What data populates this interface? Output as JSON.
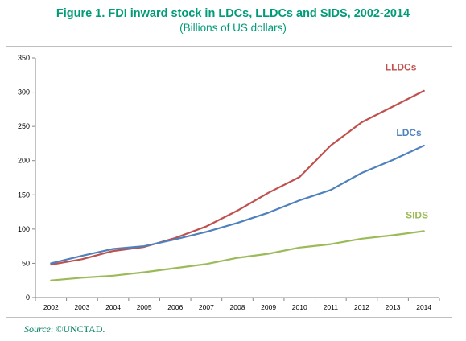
{
  "title": "Figure 1.  FDI inward stock in LDCs, LLDCs and SIDS, 2002-2014",
  "subtitle": "(Billions of US dollars)",
  "source": {
    "label": "Source",
    "text": ": ©UNCTAD."
  },
  "colors": {
    "title": "#009b77",
    "LLDCs": "#c0504d",
    "LDCs": "#4f81bd",
    "SIDS": "#9bbb59"
  },
  "chart_data": {
    "type": "line",
    "title": "Figure 1.  FDI inward stock in LDCs, LLDCs and SIDS, 2002-2014",
    "subtitle": "(Billions of US dollars)",
    "x": [
      "2002",
      "2003",
      "2004",
      "2005",
      "2006",
      "2007",
      "2008",
      "2009",
      "2010",
      "2011",
      "2012",
      "2013",
      "2014"
    ],
    "ylim": [
      0,
      350
    ],
    "yticks": [
      "0",
      "50",
      "100",
      "150",
      "200",
      "250",
      "300",
      "350"
    ],
    "grid": false,
    "legend": "inline labels",
    "series": [
      {
        "name": "LLDCs",
        "values": [
          48,
          56,
          68,
          74,
          87,
          104,
          127,
          153,
          176,
          222,
          256,
          279,
          302
        ]
      },
      {
        "name": "LDCs",
        "values": [
          50,
          61,
          71,
          75,
          85,
          96,
          109,
          124,
          142,
          157,
          182,
          201,
          222
        ]
      },
      {
        "name": "SIDS",
        "values": [
          25,
          29,
          32,
          37,
          43,
          49,
          58,
          64,
          73,
          78,
          86,
          91,
          97
        ]
      }
    ]
  }
}
